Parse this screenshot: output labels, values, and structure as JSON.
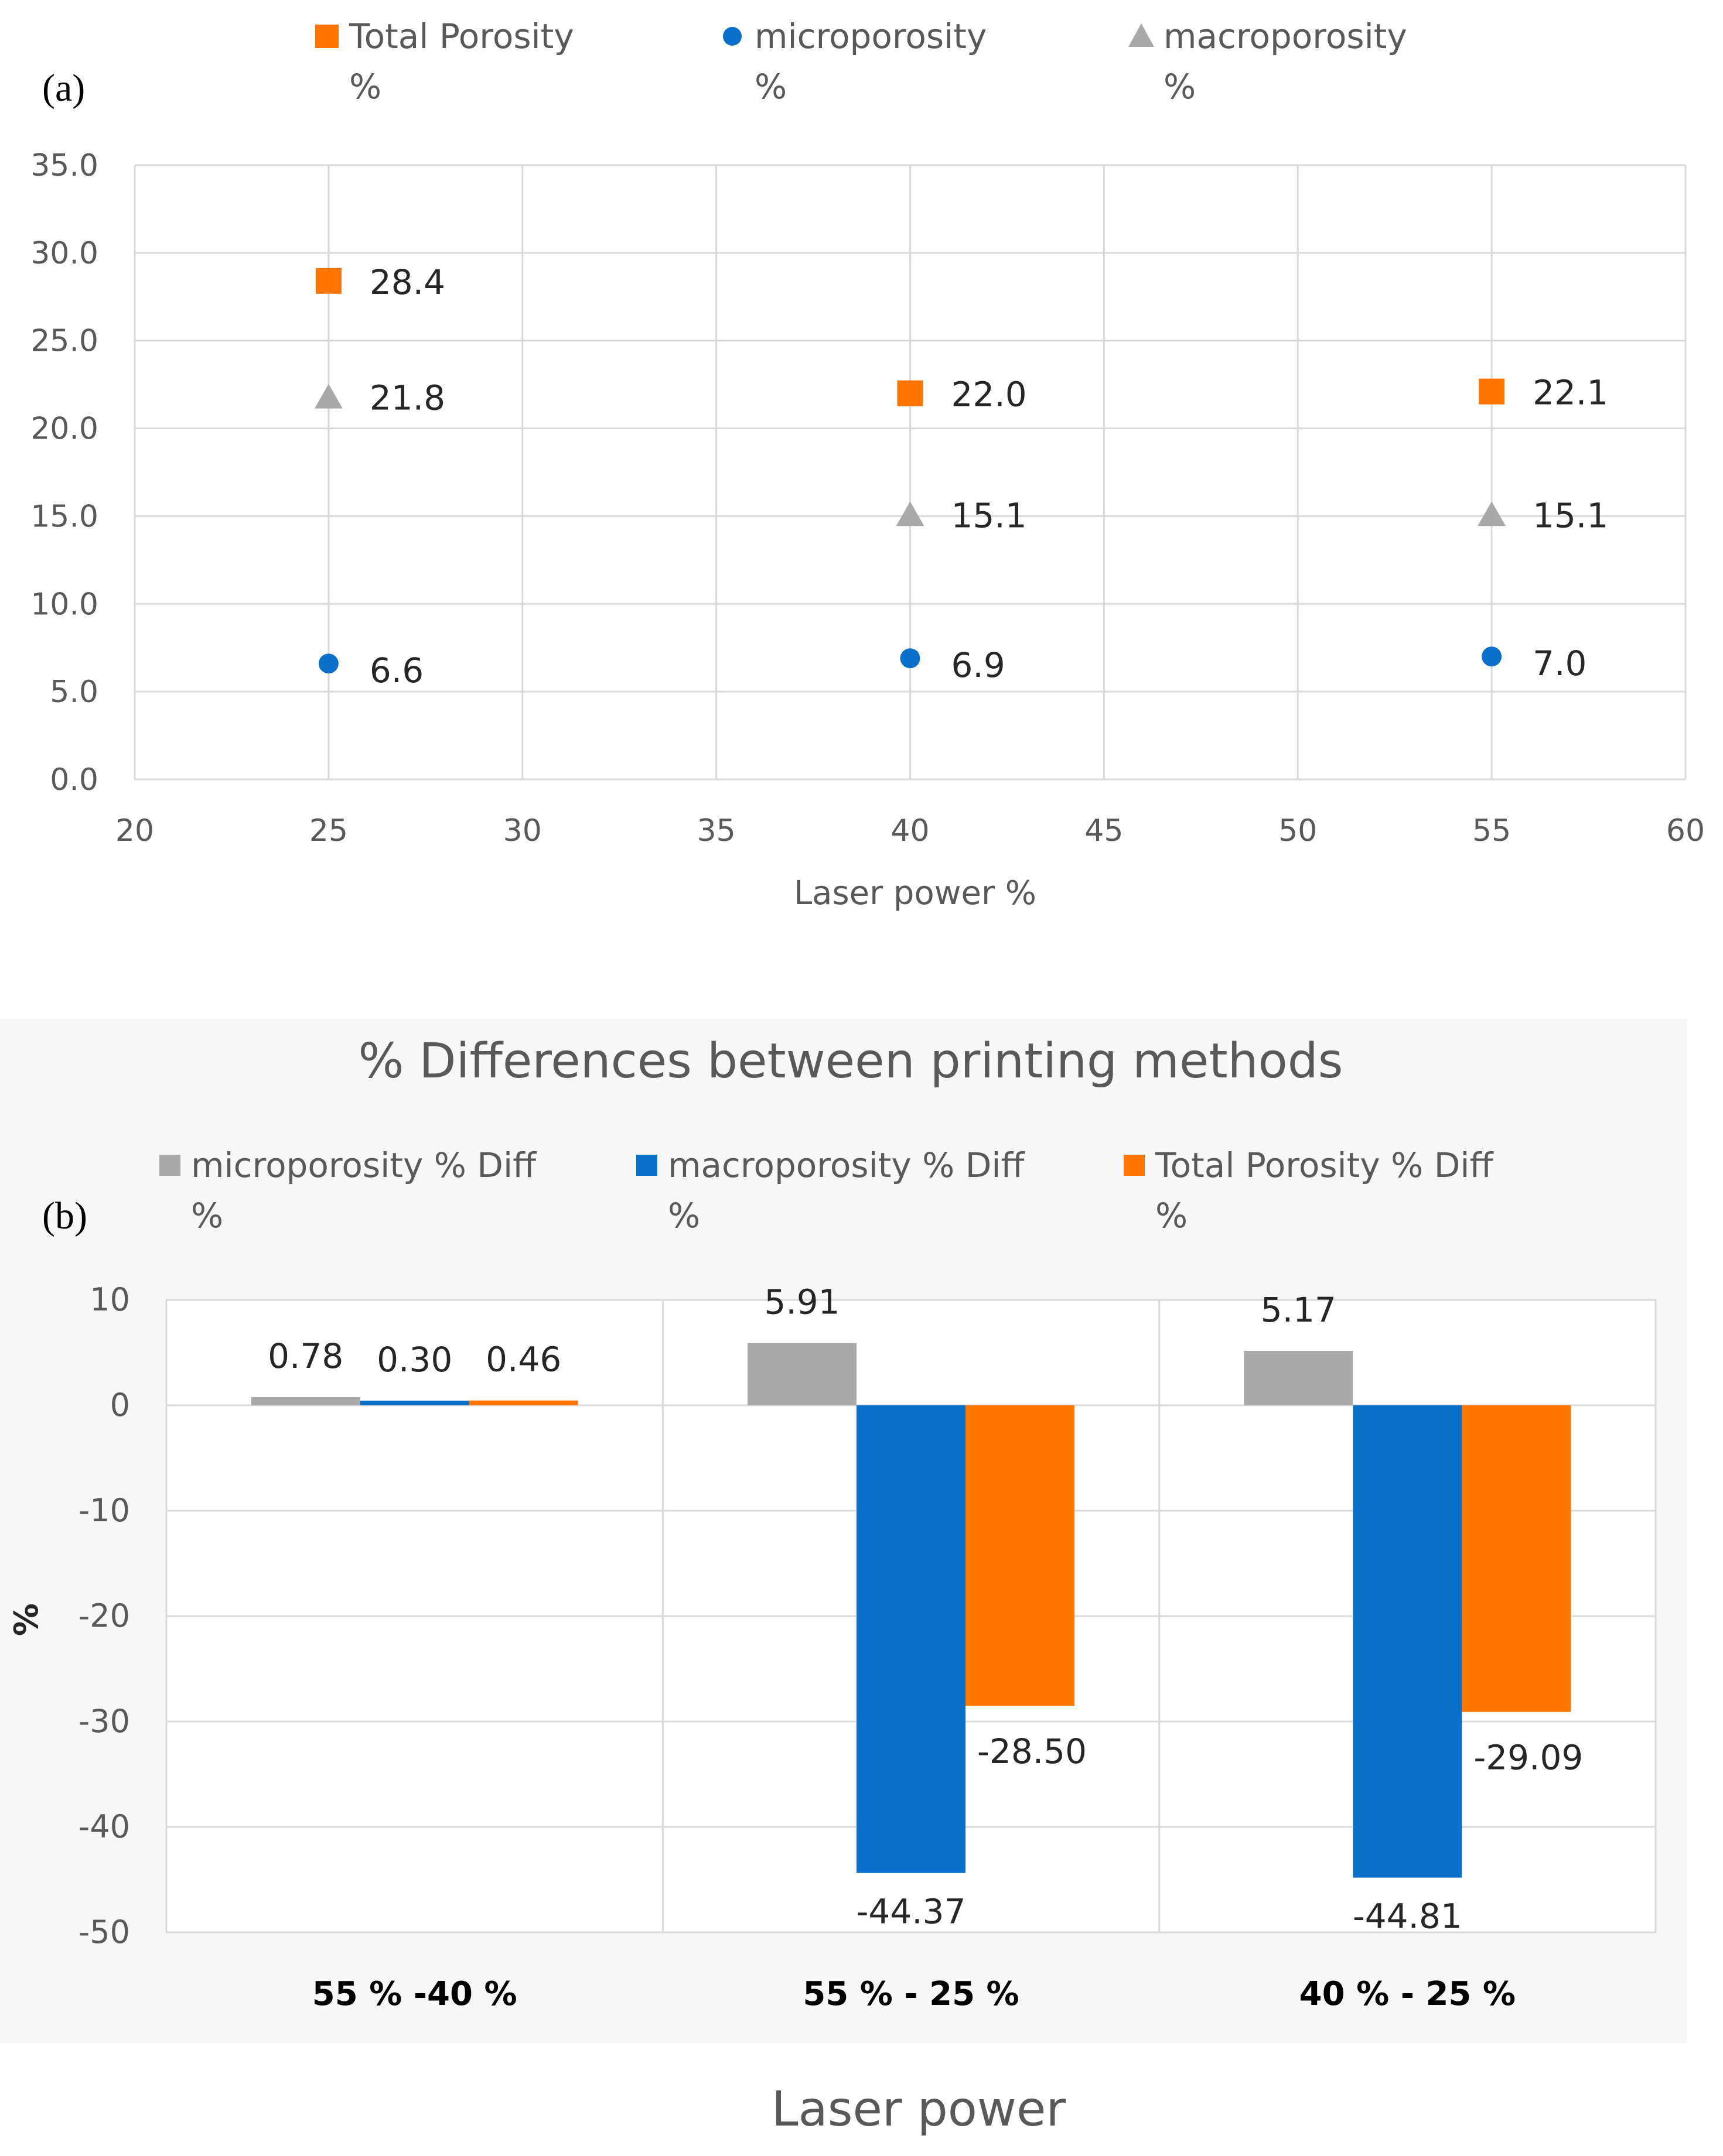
{
  "panel_labels": {
    "a": "(a)",
    "b": "(b)"
  },
  "colors": {
    "orange": "#FF7504",
    "blue": "#0A70C9",
    "gray": "#A9A9A9",
    "grid": "#D9D9D9",
    "axis_text": "#595959",
    "label_text": "#262626",
    "panel_b_bg": "#F7F7F7"
  },
  "chart_data": [
    {
      "type": "scatter",
      "panel": "(a)",
      "title": "",
      "xlabel": "Laser power %",
      "ylabel": "",
      "xlim": [
        20,
        60
      ],
      "ylim": [
        0,
        35
      ],
      "x_ticks": [
        "20",
        "25",
        "30",
        "35",
        "40",
        "45",
        "50",
        "55",
        "60"
      ],
      "y_ticks": [
        "0.0",
        "5.0",
        "10.0",
        "15.0",
        "20.0",
        "25.0",
        "30.0",
        "35.0"
      ],
      "grid": true,
      "legend_position": "top",
      "series": [
        {
          "name": "Total Porosity %",
          "legend_lines": [
            "Total Porosity",
            "%"
          ],
          "marker": "square",
          "color": "#FF7504",
          "x": [
            25,
            40,
            55
          ],
          "y": [
            28.4,
            22.0,
            22.1
          ],
          "labels": [
            "28.4",
            "22.0",
            "22.1"
          ]
        },
        {
          "name": "microporosity %",
          "legend_lines": [
            "microporosity",
            "%"
          ],
          "marker": "circle",
          "color": "#0A70C9",
          "x": [
            25,
            40,
            55
          ],
          "y": [
            6.6,
            6.9,
            7.0
          ],
          "labels": [
            "6.6",
            "6.9",
            "7.0"
          ]
        },
        {
          "name": "macroporosity %",
          "legend_lines": [
            "macroporosity",
            "%"
          ],
          "marker": "triangle",
          "color": "#A9A9A9",
          "x": [
            25,
            40,
            55
          ],
          "y": [
            21.8,
            15.1,
            15.1
          ],
          "labels": [
            "21.8",
            "15.1",
            "15.1"
          ]
        }
      ]
    },
    {
      "type": "bar",
      "panel": "(b)",
      "title": "% Differences between printing methods",
      "xlabel": "Laser power",
      "ylabel": "%",
      "ylim": [
        -50,
        10
      ],
      "y_ticks": [
        "10",
        "0",
        "-10",
        "-20",
        "-30",
        "-40",
        "-50"
      ],
      "grid": true,
      "legend_position": "top",
      "categories": [
        "55 % -40 %",
        "55 % - 25 %",
        "40 % - 25 %"
      ],
      "series": [
        {
          "name": "microporosity % Diff %",
          "legend_lines": [
            "microporosity % Diff",
            "%"
          ],
          "color": "#A9A9A9",
          "values": [
            0.78,
            5.91,
            5.17
          ],
          "labels": [
            "0.78",
            "5.91",
            "5.17"
          ]
        },
        {
          "name": "macroporosity % Diff %",
          "legend_lines": [
            "macroporosity % Diff",
            "%"
          ],
          "color": "#0A70C9",
          "values": [
            0.3,
            -44.37,
            -44.81
          ],
          "labels": [
            "0.30",
            "-44.37",
            "-44.81"
          ]
        },
        {
          "name": "Total Porosity % Diff %",
          "legend_lines": [
            "Total Porosity % Diff",
            "%"
          ],
          "color": "#FF7504",
          "values": [
            0.46,
            -28.5,
            -29.09
          ],
          "labels": [
            "0.46",
            "-28.50",
            "-29.09"
          ]
        }
      ]
    }
  ]
}
